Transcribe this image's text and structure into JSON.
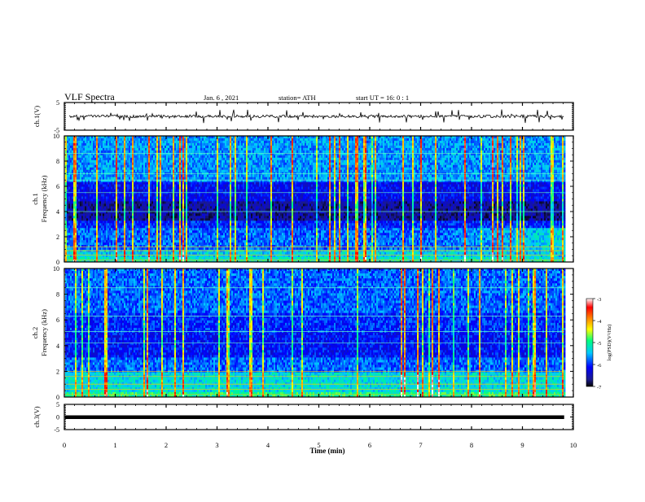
{
  "header": {
    "title": "VLF Spectra",
    "date": "Jan. 6 , 2021",
    "station": "station= ATH",
    "start": "start UT = 16: 0 : 1"
  },
  "chart_data": [
    {
      "type": "line",
      "name": "ch1-waveform",
      "ylabel": "ch.1(V)",
      "ylim": [
        -5,
        5
      ],
      "yticks": [
        "5",
        "-5"
      ],
      "xlim": [
        0,
        10
      ],
      "baseline": 0
    },
    {
      "type": "heatmap",
      "name": "ch1-spectrogram",
      "ylabel_line1": "ch.1",
      "ylabel_line2": "Frequency (kHz)",
      "ylim": [
        0,
        10
      ],
      "yticks": [
        "0",
        "2",
        "4",
        "6",
        "8",
        "10"
      ],
      "xlim": [
        0,
        10
      ],
      "colorbar": {
        "label": "log(PSD)(V²/Hz)",
        "ticks": [
          "-3",
          "-4",
          "-5",
          "-6",
          "-7"
        ],
        "range": [
          -7,
          -3
        ],
        "colors": [
          "#000000",
          "#1a1a8f",
          "#0000ff",
          "#00c8ff",
          "#00ff80",
          "#ffff00",
          "#ff8000",
          "#ff0000",
          "#ffffff"
        ]
      }
    },
    {
      "type": "heatmap",
      "name": "ch2-spectrogram",
      "ylabel_line1": "ch.2",
      "ylabel_line2": "Frequency (kHz)",
      "ylim": [
        0,
        10
      ],
      "yticks": [
        "0",
        "2",
        "4",
        "6",
        "8",
        "10"
      ],
      "xlim": [
        0,
        10
      ],
      "colorbar": {
        "label": "log(PSD)(V²/Hz)",
        "ticks": [
          "-3",
          "-4",
          "-5",
          "-6",
          "-7"
        ],
        "range": [
          -7,
          -3
        ],
        "colors": [
          "#000000",
          "#1a1a8f",
          "#0000ff",
          "#00c8ff",
          "#00ff80",
          "#ffff00",
          "#ff8000",
          "#ff0000",
          "#ffffff"
        ]
      }
    },
    {
      "type": "line",
      "name": "ch3-waveform",
      "ylabel": "ch.3(V)",
      "ylim": [
        -5,
        5
      ],
      "yticks": [
        "5",
        "0",
        "-5"
      ],
      "xlim": [
        0,
        10
      ],
      "baseline": 0
    }
  ],
  "xaxis": {
    "label": "Time (min)",
    "ticks": [
      "0",
      "1",
      "2",
      "3",
      "4",
      "5",
      "6",
      "7",
      "8",
      "9",
      "10"
    ],
    "data_end": 9.82
  }
}
